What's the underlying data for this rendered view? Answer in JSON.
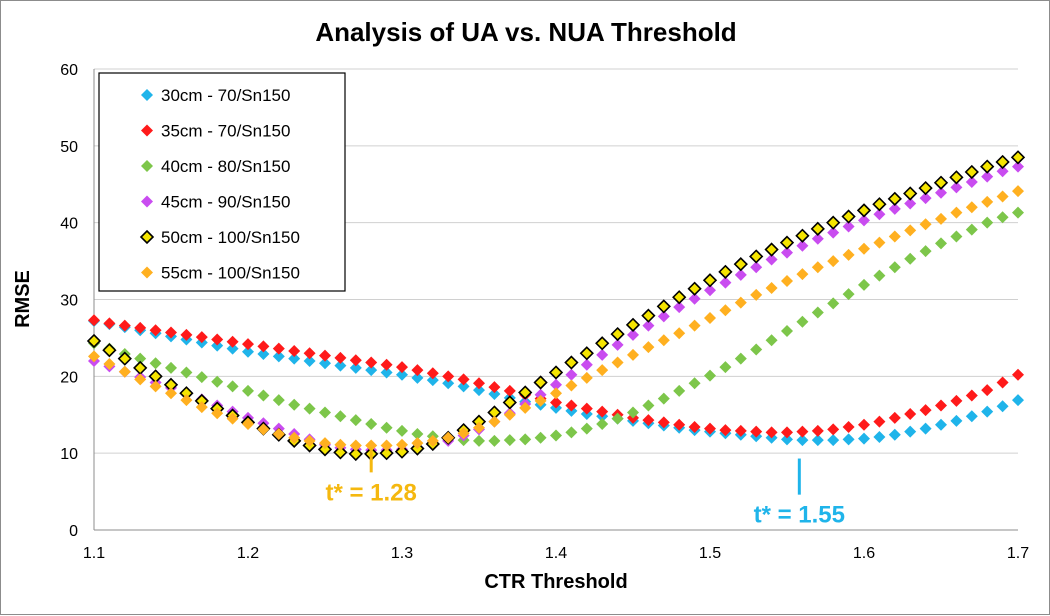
{
  "chart_data": {
    "type": "scatter",
    "title": "Analysis of UA vs. NUA Threshold",
    "xlabel": "CTR Threshold",
    "ylabel": "RMSE",
    "xlim": [
      1.1,
      1.7
    ],
    "ylim": [
      0,
      60
    ],
    "xticks": [
      "1.1",
      "1.2",
      "1.3",
      "1.4",
      "1.5",
      "1.6",
      "1.7"
    ],
    "yticks": [
      "0",
      "10",
      "20",
      "30",
      "40",
      "50",
      "60"
    ],
    "grid": "horizontal",
    "legend_position": "top-left",
    "x": [
      1.1,
      1.11,
      1.12,
      1.13,
      1.14,
      1.15,
      1.16,
      1.17,
      1.18,
      1.19,
      1.2,
      1.21,
      1.22,
      1.23,
      1.24,
      1.25,
      1.26,
      1.27,
      1.28,
      1.29,
      1.3,
      1.31,
      1.32,
      1.33,
      1.34,
      1.35,
      1.36,
      1.37,
      1.38,
      1.39,
      1.4,
      1.41,
      1.42,
      1.43,
      1.44,
      1.45,
      1.46,
      1.47,
      1.48,
      1.49,
      1.5,
      1.51,
      1.52,
      1.53,
      1.54,
      1.55,
      1.56,
      1.57,
      1.58,
      1.59,
      1.6,
      1.61,
      1.62,
      1.63,
      1.64,
      1.65,
      1.66,
      1.67,
      1.68,
      1.69,
      1.7
    ],
    "series": [
      {
        "name": "30cm - 70/Sn150",
        "color": "#1FB4EA",
        "outline": "none",
        "values": [
          27.2,
          26.8,
          26.4,
          26.0,
          25.6,
          25.2,
          24.8,
          24.4,
          24.0,
          23.6,
          23.2,
          22.9,
          22.6,
          22.3,
          22.0,
          21.7,
          21.4,
          21.1,
          20.8,
          20.5,
          20.2,
          19.8,
          19.5,
          19.1,
          18.7,
          18.2,
          17.7,
          17.2,
          16.7,
          16.3,
          15.9,
          15.5,
          15.1,
          14.8,
          14.5,
          14.2,
          13.9,
          13.6,
          13.3,
          13.0,
          12.8,
          12.6,
          12.4,
          12.2,
          12.0,
          11.8,
          11.7,
          11.7,
          11.7,
          11.8,
          11.9,
          12.1,
          12.4,
          12.8,
          13.2,
          13.7,
          14.2,
          14.8,
          15.4,
          16.1,
          16.9
        ]
      },
      {
        "name": "35cm - 70/Sn150",
        "color": "#FF1A1A",
        "outline": "none",
        "values": [
          27.3,
          26.9,
          26.6,
          26.3,
          26.0,
          25.7,
          25.4,
          25.1,
          24.8,
          24.5,
          24.2,
          23.9,
          23.6,
          23.3,
          23.0,
          22.7,
          22.4,
          22.1,
          21.8,
          21.5,
          21.2,
          20.8,
          20.4,
          20.0,
          19.6,
          19.1,
          18.6,
          18.1,
          17.6,
          17.1,
          16.6,
          16.2,
          15.8,
          15.4,
          15.0,
          14.6,
          14.3,
          14.0,
          13.7,
          13.4,
          13.2,
          13.0,
          12.9,
          12.8,
          12.7,
          12.7,
          12.8,
          12.9,
          13.1,
          13.4,
          13.7,
          14.1,
          14.6,
          15.1,
          15.6,
          16.2,
          16.8,
          17.5,
          18.2,
          19.2,
          20.2
        ]
      },
      {
        "name": "40cm - 80/Sn150",
        "color": "#7DC64A",
        "outline": "none",
        "values": [
          24.3,
          23.6,
          22.9,
          22.3,
          21.7,
          21.1,
          20.5,
          19.9,
          19.3,
          18.7,
          18.1,
          17.5,
          16.9,
          16.3,
          15.8,
          15.3,
          14.8,
          14.3,
          13.8,
          13.3,
          12.9,
          12.5,
          12.2,
          11.9,
          11.7,
          11.6,
          11.6,
          11.7,
          11.8,
          12.0,
          12.3,
          12.7,
          13.2,
          13.8,
          14.5,
          15.3,
          16.2,
          17.1,
          18.1,
          19.1,
          20.1,
          21.2,
          22.3,
          23.5,
          24.7,
          25.9,
          27.1,
          28.3,
          29.5,
          30.7,
          31.9,
          33.1,
          34.2,
          35.3,
          36.3,
          37.3,
          38.2,
          39.1,
          40.0,
          40.7,
          41.3
        ]
      },
      {
        "name": "45cm - 90/Sn150",
        "color": "#C94CF0",
        "outline": "none",
        "values": [
          22.0,
          21.3,
          20.6,
          19.9,
          19.2,
          18.5,
          17.8,
          17.0,
          16.2,
          15.4,
          14.6,
          13.9,
          13.2,
          12.5,
          11.8,
          11.1,
          10.7,
          10.5,
          10.4,
          10.4,
          10.5,
          10.7,
          11.1,
          11.6,
          12.3,
          13.1,
          14.1,
          15.2,
          16.4,
          17.6,
          18.9,
          20.2,
          21.5,
          22.8,
          24.1,
          25.4,
          26.6,
          27.8,
          29.0,
          30.1,
          31.2,
          32.2,
          33.2,
          34.2,
          35.2,
          36.1,
          37.0,
          37.9,
          38.7,
          39.5,
          40.3,
          41.1,
          41.8,
          42.5,
          43.2,
          43.9,
          44.6,
          45.3,
          46.0,
          46.7,
          47.3
        ]
      },
      {
        "name": "50cm - 100/Sn150",
        "color": "#F5E500",
        "outline": "#000000",
        "values": [
          24.6,
          23.4,
          22.3,
          21.1,
          20.0,
          18.9,
          17.8,
          16.8,
          15.8,
          14.9,
          14.0,
          13.2,
          12.4,
          11.6,
          11.0,
          10.5,
          10.1,
          9.9,
          9.9,
          10.0,
          10.2,
          10.6,
          11.2,
          12.0,
          13.0,
          14.1,
          15.3,
          16.6,
          17.9,
          19.2,
          20.5,
          21.8,
          23.0,
          24.3,
          25.5,
          26.7,
          27.9,
          29.1,
          30.3,
          31.4,
          32.5,
          33.6,
          34.6,
          35.6,
          36.5,
          37.4,
          38.3,
          39.2,
          40.0,
          40.8,
          41.6,
          42.4,
          43.1,
          43.8,
          44.5,
          45.2,
          45.9,
          46.6,
          47.3,
          47.9,
          48.5
        ]
      },
      {
        "name": "55cm - 100/Sn150",
        "color": "#FFB020",
        "outline": "none",
        "values": [
          22.6,
          21.6,
          20.6,
          19.6,
          18.7,
          17.8,
          16.9,
          16.0,
          15.2,
          14.5,
          13.8,
          13.1,
          12.5,
          12.0,
          11.6,
          11.3,
          11.1,
          11.0,
          11.0,
          11.0,
          11.1,
          11.3,
          11.6,
          12.0,
          12.6,
          13.3,
          14.1,
          15.0,
          15.9,
          16.8,
          17.8,
          18.8,
          19.8,
          20.8,
          21.8,
          22.8,
          23.8,
          24.7,
          25.6,
          26.6,
          27.6,
          28.6,
          29.6,
          30.6,
          31.5,
          32.4,
          33.3,
          34.2,
          35.0,
          35.8,
          36.6,
          37.4,
          38.2,
          39.0,
          39.8,
          40.5,
          41.3,
          42.0,
          42.7,
          43.4,
          44.1
        ]
      }
    ],
    "annotations": [
      {
        "text": "t* = 1.28",
        "x": 1.28,
        "y_from": 10.8,
        "y_to": 7.5,
        "color": "#F5B80F"
      },
      {
        "text": "t* = 1.55",
        "x": 1.558,
        "y_from": 9.3,
        "y_to": 4.6,
        "color": "#1FB4EA"
      }
    ]
  }
}
